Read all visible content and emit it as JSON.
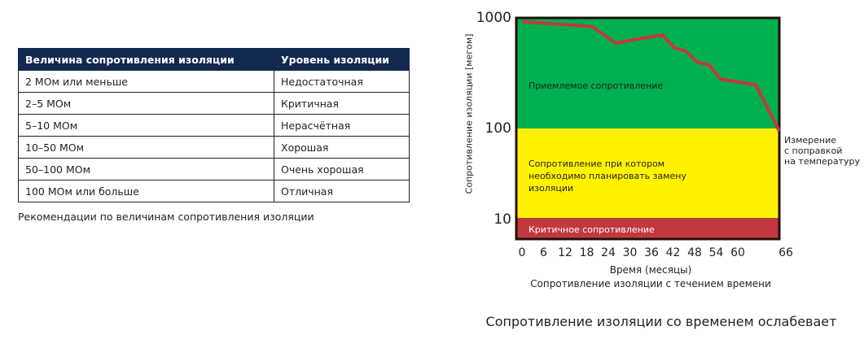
{
  "table": {
    "headers": [
      "Величина сопротивления изоляции",
      "Уровень изоляции"
    ],
    "rows": [
      [
        "2 МОм или меньше",
        "Недостаточная"
      ],
      [
        "2–5 МОм",
        "Критичная"
      ],
      [
        "5–10 МОм",
        "Нерасчётная"
      ],
      [
        "10–50 МОм",
        "Хорошая"
      ],
      [
        "50–100 МОм",
        "Очень хорошая"
      ],
      [
        "100 МОм или больше",
        "Отличная"
      ]
    ],
    "caption": "Рекомендации по величинам сопротивления изоляции",
    "header_color": "#13284f"
  },
  "chart_data": {
    "type": "line",
    "title": "Сопротивление изоляции со временем ослабевает",
    "subtitle": "Сопротивление изоляции с течением времени",
    "xlabel": "Время (месяцы)",
    "ylabel": "Сопротивление изоляции [мегом]",
    "yscale": "log",
    "ylim": [
      5,
      1000
    ],
    "yticks": [
      "1000",
      "100",
      "10"
    ],
    "xticks": [
      "0",
      "6",
      "12",
      "18",
      "24",
      "30",
      "36",
      "42",
      "48",
      "54",
      "60",
      "66"
    ],
    "xlim": [
      0,
      66
    ],
    "series": [
      {
        "name": "Сопротивление изоляции",
        "color": "#c1393f",
        "x": [
          0,
          18,
          24,
          36,
          39,
          42,
          45,
          48,
          51,
          60,
          66
        ],
        "values": [
          950,
          850,
          580,
          700,
          520,
          480,
          370,
          350,
          250,
          220,
          75
        ]
      }
    ],
    "zones": [
      {
        "label": "Приемлемое сопротивление",
        "from": 100,
        "to": 1000,
        "color": "#00b050"
      },
      {
        "label": "Сопротивление при котором необходимо планировать замену изоляции",
        "from": 10,
        "to": 100,
        "color": "#fff200"
      },
      {
        "label": "Критичное сопротивление",
        "from": 5,
        "to": 10,
        "color": "#c1393f"
      }
    ],
    "annotations": [
      {
        "text": "Измерение с поправкой на температуру",
        "x": 66,
        "y": 75
      }
    ],
    "grid": false,
    "legend": "none"
  },
  "zone_text": {
    "green": "Приемлемое сопротивление",
    "yellow_l1": "Сопротивление при котором",
    "yellow_l2": "необходимо планировать замену",
    "yellow_l3": "изоляции",
    "red": "Критичное сопротивление"
  },
  "annotation_lines": [
    "Измерение",
    "с поправкой",
    "на температуру"
  ]
}
